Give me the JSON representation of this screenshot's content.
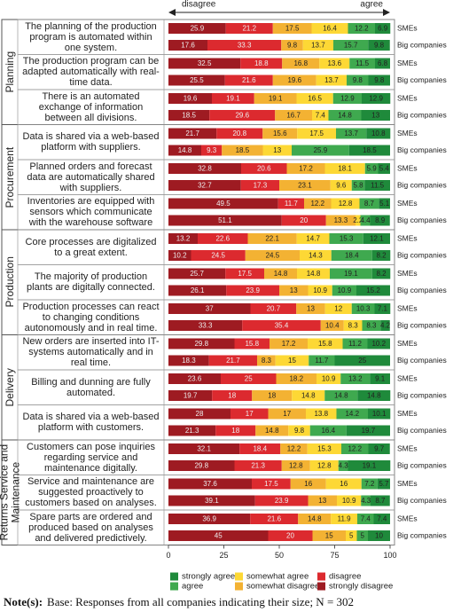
{
  "chart_data": {
    "type": "stacked_bar",
    "arrow_left": "disagree",
    "arrow_right": "agree",
    "xlim": [
      0,
      100
    ],
    "xticks": [
      0,
      25,
      50,
      75,
      100
    ],
    "grid": false,
    "groups": [
      {
        "name": "Planning",
        "statements": [
          "The planning of the production program is automated within one system.",
          "The production program can be adapted automatically with real-time data.",
          "There is an automated exchange of information between all divisions."
        ]
      },
      {
        "name": "Procurement",
        "statements": [
          "Data is shared via a web-based platform with suppliers.",
          "Planned orders and forecast data are automatically shared with suppliers.",
          "Inventories are equipped with sensors which communicate with the warehouse software"
        ]
      },
      {
        "name": "Production",
        "statements": [
          "Core processes are digitalized to a great extent.",
          "The majority of production plants are digitally connected.",
          "Production processes can react to changing conditions autonomously and in real time."
        ]
      },
      {
        "name": "Delivery",
        "statements": [
          "New orders are inserted into IT-systems automatically and in real time.",
          "Billing and dunning are fully automated.",
          "Data is shared via a web-based platform with customers."
        ]
      },
      {
        "name": "Returns Service and Maintenance",
        "statements": [
          "Customers can pose inquiries regarding service and maintenance digitally.",
          "Service and maintenance are suggested proactively to customers based on analyses.",
          "Spare parts are ordered and produced based on analyses and delivered predictively."
        ]
      }
    ],
    "categories": [
      "SMEs",
      "Big companies",
      "SMEs",
      "Big companies",
      "SMEs",
      "Big companies",
      "SMEs",
      "Big companies",
      "SMEs",
      "Big companies",
      "SMEs",
      "Big companies",
      "SMEs",
      "Big companies",
      "SMEs",
      "Big companies",
      "SMEs",
      "Big companies",
      "SMEs",
      "Big companies",
      "SMEs",
      "Big companies",
      "SMEs",
      "Big companies",
      "SMEs",
      "Big companies",
      "SMEs",
      "Big companies",
      "SMEs",
      "Big companies"
    ],
    "series": [
      {
        "name": "strongly disagree",
        "color": "#9e1b22",
        "values": [
          25.9,
          17.6,
          32.5,
          25.5,
          19.6,
          18.5,
          21.7,
          14.8,
          32.8,
          32.7,
          49.5,
          51.1,
          13.2,
          10.2,
          25.7,
          26.1,
          37,
          33.3,
          29.8,
          18.3,
          23.6,
          19.7,
          28,
          21.3,
          32.1,
          29.8,
          37.6,
          39.1,
          36.9,
          45
        ]
      },
      {
        "name": "disagree",
        "color": "#dc2a2f",
        "values": [
          21.2,
          33.3,
          18.8,
          21.6,
          19.1,
          29.6,
          20.8,
          9.3,
          20.6,
          17.3,
          11.7,
          20,
          22.6,
          24.5,
          17.5,
          23.9,
          20.7,
          35.4,
          15.8,
          21.7,
          25,
          18,
          17,
          18,
          18.4,
          21.3,
          17.5,
          23.9,
          21.6,
          20
        ]
      },
      {
        "name": "somewhat disagree",
        "color": "#f3b233",
        "values": [
          17.5,
          9.8,
          16.8,
          19.6,
          19.1,
          16.7,
          15.6,
          18.5,
          17.2,
          23.1,
          12.2,
          13.3,
          22.1,
          24.5,
          14.8,
          13,
          13,
          10.4,
          17.2,
          8.3,
          18.2,
          18,
          17,
          14.8,
          12.2,
          12.8,
          16,
          13,
          14.8,
          15
        ]
      },
      {
        "name": "somewhat agree",
        "color": "#fdd835",
        "values": [
          16.4,
          13.7,
          13.6,
          13.7,
          16.5,
          7.4,
          17.5,
          13,
          18.1,
          9.6,
          12.8,
          2.2,
          14.7,
          14.3,
          14.8,
          10.9,
          12,
          8.3,
          15.8,
          15,
          10.9,
          14.8,
          13.8,
          9.8,
          15.3,
          12.8,
          16,
          10.9,
          11.9,
          5
        ]
      },
      {
        "name": "agree",
        "color": "#3fa94f",
        "values": [
          12.2,
          15.7,
          11.5,
          9.8,
          12.9,
          14.8,
          13.7,
          25.9,
          5.9,
          5.8,
          8.7,
          4.4,
          15.3,
          18.4,
          19.1,
          10.9,
          10.3,
          8.3,
          11.2,
          11.7,
          13.2,
          14.8,
          14.2,
          16.4,
          12.2,
          4.3,
          7.2,
          4.3,
          7.4,
          5
        ]
      },
      {
        "name": "strongly agree",
        "color": "#1f8a3b",
        "values": [
          6.9,
          9.8,
          6.8,
          9.8,
          12.9,
          13,
          10.8,
          18.5,
          5.4,
          11.5,
          5.1,
          8.9,
          12.1,
          8.2,
          8.2,
          15.2,
          7.1,
          4.2,
          10.2,
          25,
          9.1,
          14.8,
          10.1,
          19.7,
          9.7,
          19.1,
          5.7,
          8.7,
          7.4,
          10
        ]
      }
    ]
  },
  "note_label": "Note(s):",
  "note": "Base: Responses from all companies indicating their size; N = 302"
}
